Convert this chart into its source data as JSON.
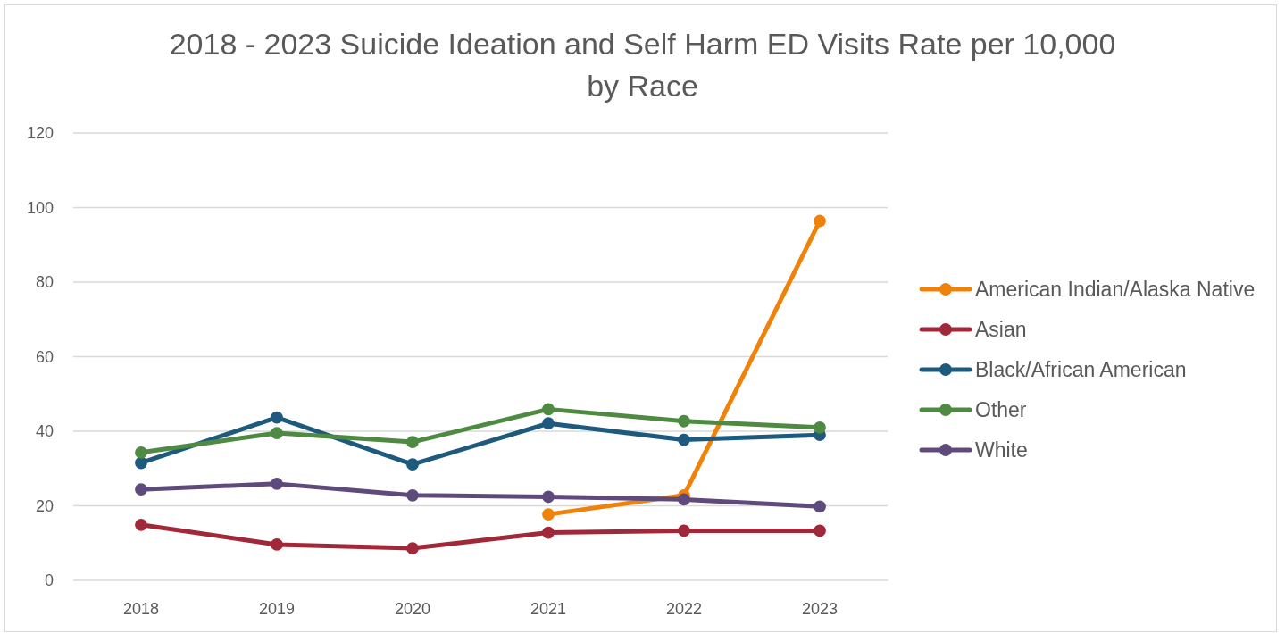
{
  "chart_data": {
    "type": "line",
    "title": "2018 - 2023 Suicide Ideation and Self Harm ED Visits Rate per 10,000 by Race",
    "categories": [
      "2018",
      "2019",
      "2020",
      "2021",
      "2022",
      "2023"
    ],
    "series": [
      {
        "name": "American Indian/Alaska Native",
        "color": "#f0820a",
        "values": [
          null,
          null,
          null,
          17.7,
          22.8,
          96.4
        ]
      },
      {
        "name": "Asian",
        "color": "#a12838",
        "values": [
          14.9,
          9.6,
          8.6,
          12.8,
          13.3,
          13.3
        ]
      },
      {
        "name": "Black/African American",
        "color": "#1d5a7e",
        "values": [
          31.5,
          43.7,
          31.1,
          42.1,
          37.7,
          39.0
        ]
      },
      {
        "name": "Other",
        "color": "#4f8a43",
        "values": [
          34.3,
          39.5,
          37.1,
          45.9,
          42.7,
          41.0
        ]
      },
      {
        "name": "White",
        "color": "#5f4b7b",
        "values": [
          24.4,
          25.9,
          22.8,
          22.4,
          21.7,
          19.8
        ]
      }
    ],
    "ylim": [
      0,
      120
    ],
    "yticks": [
      0,
      20,
      40,
      60,
      80,
      100,
      120
    ],
    "grid": "y",
    "legend": "right",
    "marker": "circle",
    "line_style": "solid"
  }
}
